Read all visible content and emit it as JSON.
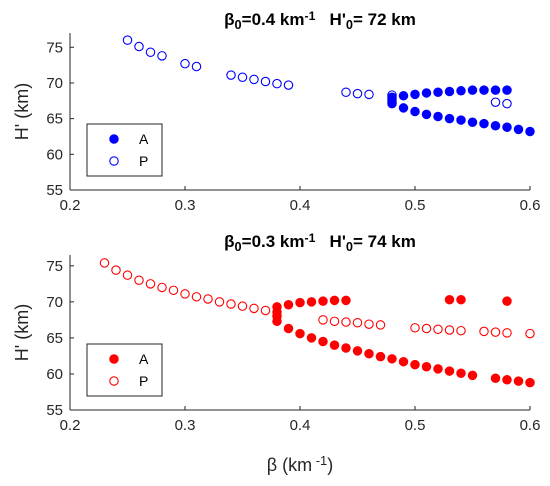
{
  "chart_data": [
    {
      "type": "scatter",
      "title_parts": [
        {
          "text": "β",
          "sup": false,
          "sub": false
        },
        {
          "text": "0",
          "sup": false,
          "sub": true
        },
        {
          "text": "=0.4 km",
          "sup": false,
          "sub": false
        },
        {
          "text": "-1",
          "sup": true,
          "sub": false
        },
        {
          "text": "   H'",
          "sup": false,
          "sub": false
        },
        {
          "text": "0",
          "sup": false,
          "sub": true
        },
        {
          "text": "= 72 km",
          "sup": false,
          "sub": false
        }
      ],
      "xlabel_parts": [],
      "ylabel": "H' (km)",
      "xlim": [
        0.2,
        0.6
      ],
      "ylim": [
        55,
        77
      ],
      "xticks": [
        0.2,
        0.3,
        0.4,
        0.5,
        0.6
      ],
      "xtick_labels": [
        "0.2",
        "0.3",
        "0.4",
        "0.5",
        "0.6"
      ],
      "yticks": [
        55,
        60,
        65,
        70,
        75
      ],
      "ytick_labels": [
        "55",
        "60",
        "65",
        "70",
        "75"
      ],
      "color": "#0000ff",
      "legend": {
        "position": "lower-left"
      },
      "series": [
        {
          "name": "A",
          "marker": "filled-circle",
          "points": [
            [
              0.48,
              68.0
            ],
            [
              0.48,
              67.7
            ],
            [
              0.48,
              67.4
            ],
            [
              0.48,
              67.1
            ],
            [
              0.49,
              68.2
            ],
            [
              0.5,
              68.4
            ],
            [
              0.51,
              68.6
            ],
            [
              0.52,
              68.7
            ],
            [
              0.53,
              68.8
            ],
            [
              0.54,
              68.9
            ],
            [
              0.55,
              69.0
            ],
            [
              0.56,
              69.0
            ],
            [
              0.57,
              69.0
            ],
            [
              0.58,
              69.0
            ],
            [
              0.49,
              66.5
            ],
            [
              0.5,
              66.0
            ],
            [
              0.51,
              65.6
            ],
            [
              0.52,
              65.3
            ],
            [
              0.53,
              65.0
            ],
            [
              0.54,
              64.8
            ],
            [
              0.55,
              64.5
            ],
            [
              0.56,
              64.3
            ],
            [
              0.57,
              64.0
            ],
            [
              0.58,
              63.8
            ],
            [
              0.59,
              63.5
            ],
            [
              0.6,
              63.2
            ]
          ]
        },
        {
          "name": "P",
          "marker": "open-circle",
          "points": [
            [
              0.25,
              76.0
            ],
            [
              0.26,
              75.1
            ],
            [
              0.27,
              74.3
            ],
            [
              0.28,
              73.8
            ],
            [
              0.3,
              72.7
            ],
            [
              0.31,
              72.3
            ],
            [
              0.34,
              71.1
            ],
            [
              0.35,
              70.8
            ],
            [
              0.36,
              70.5
            ],
            [
              0.37,
              70.2
            ],
            [
              0.38,
              69.9
            ],
            [
              0.39,
              69.7
            ],
            [
              0.44,
              68.7
            ],
            [
              0.45,
              68.5
            ],
            [
              0.46,
              68.4
            ],
            [
              0.48,
              68.3
            ],
            [
              0.57,
              67.3
            ],
            [
              0.58,
              67.1
            ]
          ]
        }
      ]
    },
    {
      "type": "scatter",
      "title_parts": [
        {
          "text": "β",
          "sup": false,
          "sub": false
        },
        {
          "text": "0",
          "sup": false,
          "sub": true
        },
        {
          "text": "=0.3 km",
          "sup": false,
          "sub": false
        },
        {
          "text": "-1",
          "sup": true,
          "sub": false
        },
        {
          "text": "   H'",
          "sup": false,
          "sub": false
        },
        {
          "text": "0",
          "sup": false,
          "sub": true
        },
        {
          "text": "= 74 km",
          "sup": false,
          "sub": false
        }
      ],
      "xlabel_parts": [
        {
          "text": "β",
          "sup": false,
          "sub": false
        },
        {
          "text": " (km",
          "sup": false,
          "sub": false
        },
        {
          "text": " -1",
          "sup": true,
          "sub": false
        },
        {
          "text": ")",
          "sup": false,
          "sub": false
        }
      ],
      "ylabel": "H' (km)",
      "xlim": [
        0.2,
        0.6
      ],
      "ylim": [
        55,
        76.5
      ],
      "xticks": [
        0.2,
        0.3,
        0.4,
        0.5,
        0.6
      ],
      "xtick_labels": [
        "0.2",
        "0.3",
        "0.4",
        "0.5",
        "0.6"
      ],
      "yticks": [
        55,
        60,
        65,
        70,
        75
      ],
      "ytick_labels": [
        "55",
        "60",
        "65",
        "70",
        "75"
      ],
      "color": "#ff0000",
      "legend": {
        "position": "lower-left"
      },
      "series": [
        {
          "name": "A",
          "marker": "filled-circle",
          "points": [
            [
              0.38,
              69.3
            ],
            [
              0.38,
              68.6
            ],
            [
              0.38,
              68.0
            ],
            [
              0.38,
              67.3
            ],
            [
              0.39,
              69.6
            ],
            [
              0.4,
              69.9
            ],
            [
              0.41,
              70.0
            ],
            [
              0.42,
              70.1
            ],
            [
              0.43,
              70.2
            ],
            [
              0.44,
              70.2
            ],
            [
              0.53,
              70.3
            ],
            [
              0.54,
              70.3
            ],
            [
              0.58,
              70.1
            ],
            [
              0.39,
              66.3
            ],
            [
              0.4,
              65.6
            ],
            [
              0.41,
              65.0
            ],
            [
              0.42,
              64.5
            ],
            [
              0.43,
              64.0
            ],
            [
              0.44,
              63.6
            ],
            [
              0.45,
              63.2
            ],
            [
              0.46,
              62.8
            ],
            [
              0.47,
              62.4
            ],
            [
              0.48,
              62.1
            ],
            [
              0.49,
              61.7
            ],
            [
              0.5,
              61.3
            ],
            [
              0.51,
              61.0
            ],
            [
              0.52,
              60.7
            ],
            [
              0.53,
              60.4
            ],
            [
              0.54,
              60.1
            ],
            [
              0.55,
              59.8
            ],
            [
              0.57,
              59.4
            ],
            [
              0.58,
              59.2
            ],
            [
              0.59,
              59.0
            ],
            [
              0.6,
              58.8
            ]
          ]
        },
        {
          "name": "P",
          "marker": "open-circle",
          "points": [
            [
              0.23,
              75.4
            ],
            [
              0.24,
              74.4
            ],
            [
              0.25,
              73.7
            ],
            [
              0.26,
              73.0
            ],
            [
              0.27,
              72.5
            ],
            [
              0.28,
              72.0
            ],
            [
              0.29,
              71.6
            ],
            [
              0.3,
              71.1
            ],
            [
              0.31,
              70.7
            ],
            [
              0.32,
              70.4
            ],
            [
              0.33,
              70.0
            ],
            [
              0.34,
              69.7
            ],
            [
              0.35,
              69.4
            ],
            [
              0.36,
              69.1
            ],
            [
              0.37,
              68.8
            ],
            [
              0.42,
              67.5
            ],
            [
              0.43,
              67.3
            ],
            [
              0.44,
              67.2
            ],
            [
              0.45,
              67.1
            ],
            [
              0.46,
              66.9
            ],
            [
              0.47,
              66.8
            ],
            [
              0.5,
              66.4
            ],
            [
              0.51,
              66.3
            ],
            [
              0.52,
              66.2
            ],
            [
              0.53,
              66.1
            ],
            [
              0.54,
              66.0
            ],
            [
              0.56,
              65.9
            ],
            [
              0.57,
              65.8
            ],
            [
              0.58,
              65.7
            ],
            [
              0.6,
              65.6
            ]
          ]
        }
      ]
    }
  ]
}
